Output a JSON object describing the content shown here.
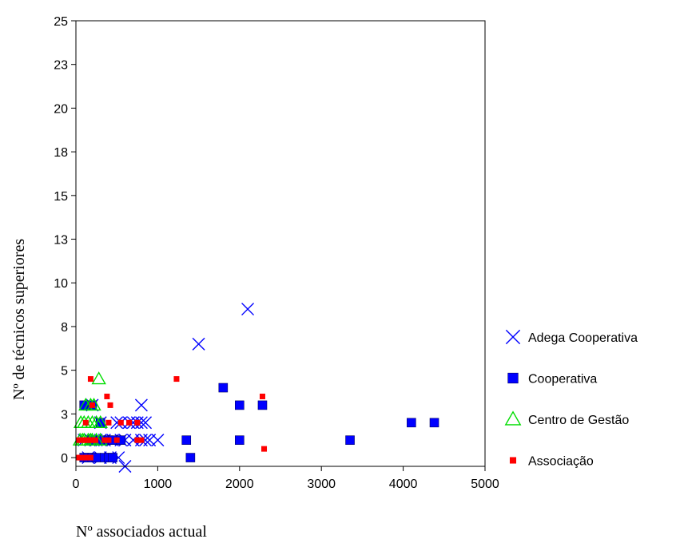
{
  "chart_data": {
    "type": "scatter",
    "title": "",
    "xlabel": "Nº associados actual",
    "ylabel": "Nº de técnicos superiores",
    "xlim": [
      0,
      5000
    ],
    "ylim": [
      -0.5,
      25
    ],
    "x_ticks": [
      0,
      1000,
      2000,
      3000,
      4000,
      5000
    ],
    "x_tick_labels": [
      "0",
      "1000",
      "2000",
      "3000",
      "4000",
      "5000"
    ],
    "y_ticks": [
      0,
      2.5,
      5,
      7.5,
      10,
      12.5,
      15,
      17.5,
      20,
      22.5,
      25
    ],
    "y_tick_labels": [
      "0",
      "3",
      "5",
      "8",
      "10",
      "13",
      "15",
      "18",
      "20",
      "23",
      "25"
    ],
    "grid": false,
    "legend_position": "right",
    "series": [
      {
        "name": "Adega Cooperativa",
        "marker": "x",
        "color": "#0000ff",
        "points": [
          [
            100,
            1
          ],
          [
            180,
            1
          ],
          [
            250,
            1
          ],
          [
            300,
            1
          ],
          [
            350,
            1
          ],
          [
            450,
            1
          ],
          [
            550,
            1
          ],
          [
            600,
            1
          ],
          [
            700,
            1
          ],
          [
            800,
            1
          ],
          [
            850,
            1
          ],
          [
            900,
            1
          ],
          [
            1000,
            1
          ],
          [
            150,
            0
          ],
          [
            300,
            0
          ],
          [
            420,
            0
          ],
          [
            520,
            0
          ],
          [
            600,
            -0.5
          ],
          [
            300,
            2
          ],
          [
            500,
            2
          ],
          [
            550,
            2
          ],
          [
            650,
            2
          ],
          [
            700,
            2
          ],
          [
            750,
            2
          ],
          [
            800,
            2
          ],
          [
            850,
            2
          ],
          [
            200,
            3
          ],
          [
            800,
            3
          ],
          [
            1500,
            6.5
          ],
          [
            2100,
            8.5
          ]
        ]
      },
      {
        "name": "Cooperativa",
        "marker": "square",
        "color": "#0000ff",
        "points": [
          [
            100,
            0
          ],
          [
            150,
            0
          ],
          [
            200,
            0
          ],
          [
            250,
            0
          ],
          [
            350,
            0
          ],
          [
            400,
            0
          ],
          [
            450,
            0
          ],
          [
            200,
            1
          ],
          [
            300,
            1
          ],
          [
            400,
            1
          ],
          [
            450,
            1
          ],
          [
            550,
            1
          ],
          [
            100,
            3
          ],
          [
            200,
            3
          ],
          [
            300,
            2
          ],
          [
            1350,
            1
          ],
          [
            1400,
            0
          ],
          [
            1800,
            4
          ],
          [
            2000,
            3
          ],
          [
            2000,
            1
          ],
          [
            2280,
            3
          ],
          [
            3350,
            1
          ],
          [
            4100,
            2
          ],
          [
            4380,
            2
          ]
        ]
      },
      {
        "name": "Centro de Gestão",
        "marker": "triangle",
        "color": "#00dd00",
        "points": [
          [
            50,
            1
          ],
          [
            80,
            1
          ],
          [
            100,
            1
          ],
          [
            150,
            1
          ],
          [
            180,
            1
          ],
          [
            200,
            1
          ],
          [
            250,
            1
          ],
          [
            300,
            1
          ],
          [
            60,
            2
          ],
          [
            100,
            2
          ],
          [
            150,
            2
          ],
          [
            200,
            2
          ],
          [
            250,
            2
          ],
          [
            300,
            2
          ],
          [
            120,
            3
          ],
          [
            180,
            3
          ],
          [
            220,
            3
          ],
          [
            280,
            4.5
          ]
        ]
      },
      {
        "name": "Associação",
        "marker": "small-square",
        "color": "#ff0000",
        "points": [
          [
            30,
            0
          ],
          [
            60,
            0
          ],
          [
            90,
            0
          ],
          [
            120,
            0
          ],
          [
            150,
            0
          ],
          [
            180,
            0
          ],
          [
            30,
            1
          ],
          [
            60,
            1
          ],
          [
            90,
            1
          ],
          [
            120,
            1
          ],
          [
            150,
            1
          ],
          [
            180,
            1
          ],
          [
            210,
            1
          ],
          [
            240,
            1
          ],
          [
            350,
            1
          ],
          [
            400,
            1
          ],
          [
            500,
            1
          ],
          [
            750,
            1
          ],
          [
            800,
            1
          ],
          [
            400,
            2
          ],
          [
            550,
            2
          ],
          [
            650,
            2
          ],
          [
            750,
            2
          ],
          [
            120,
            2
          ],
          [
            200,
            3
          ],
          [
            420,
            3
          ],
          [
            180,
            4.5
          ],
          [
            380,
            3.5
          ],
          [
            1230,
            4.5
          ],
          [
            2280,
            3.5
          ],
          [
            2300,
            0.5
          ]
        ]
      }
    ]
  }
}
